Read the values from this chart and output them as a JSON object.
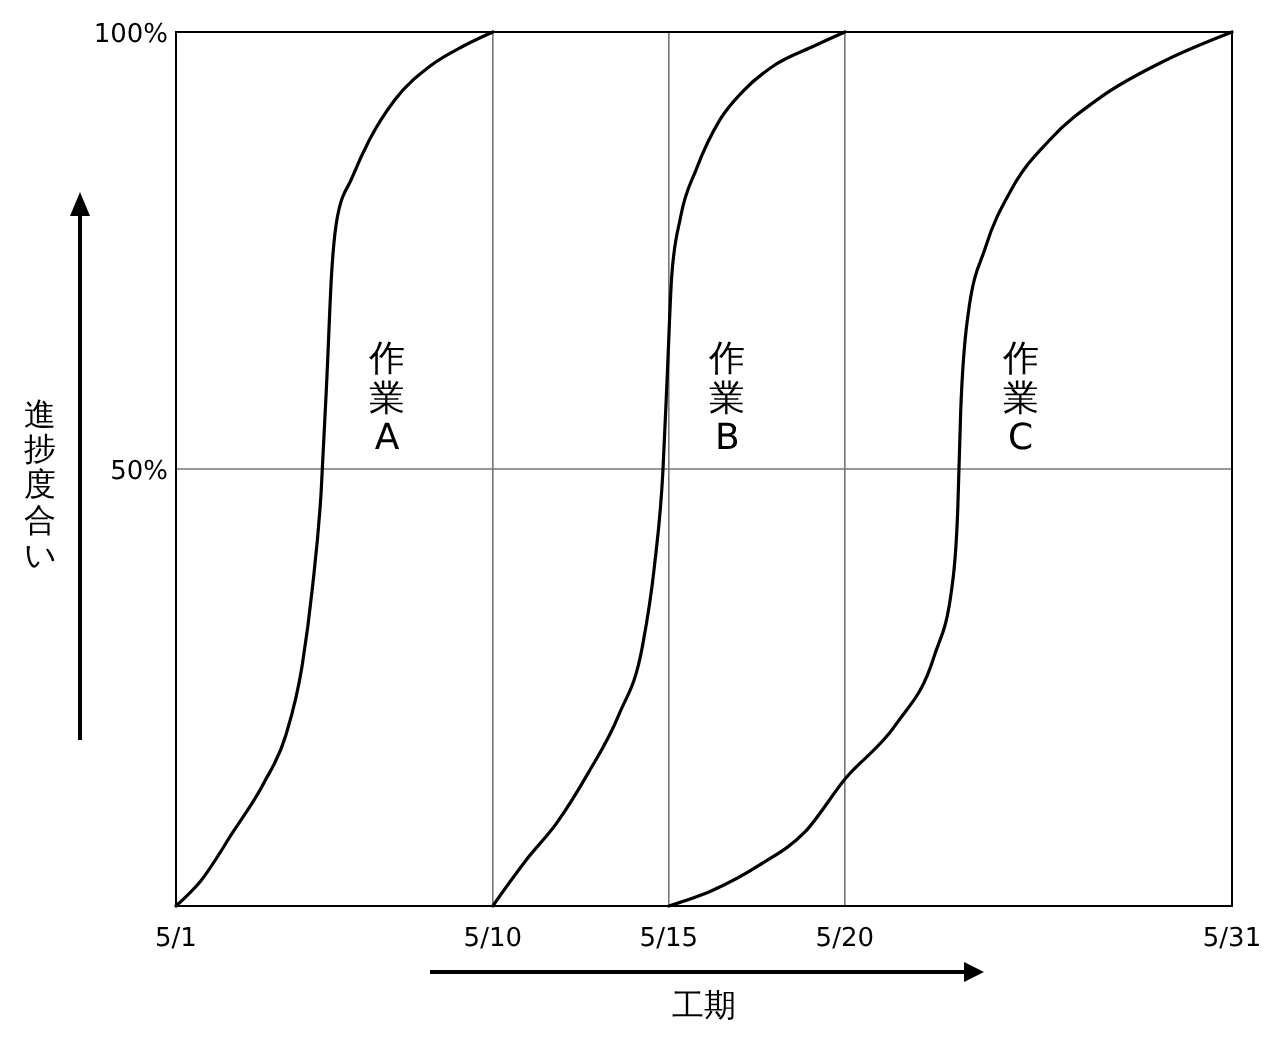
{
  "chart_data": {
    "type": "line",
    "xlabel": "工期",
    "ylabel": "進捗度合い",
    "xlim": [
      "--05-01",
      "--05-31"
    ],
    "xticks": [
      {
        "value": "--05-01",
        "label": "5/1"
      },
      {
        "value": "--05-10",
        "label": "5/10"
      },
      {
        "value": "--05-15",
        "label": "5/15"
      },
      {
        "value": "--05-20",
        "label": "5/20"
      },
      {
        "value": "--05-31",
        "label": "5/31"
      }
    ],
    "ylim": [
      0,
      100
    ],
    "yticks": [
      {
        "value": 0,
        "label": null
      },
      {
        "value": 50,
        "label": "50%"
      },
      {
        "value": 100,
        "label": "100%"
      }
    ],
    "grid": true,
    "line_style": "solid",
    "series": [
      {
        "name": "作業A",
        "color": "#000000",
        "x": [
          "--05-01T00:00",
          "--05-01T17:00",
          "--05-02T15:00",
          "--05-03T12:00",
          "--05-04T03:00",
          "--05-04T14:00",
          "--05-04T21:00",
          "--05-05T03:00",
          "--05-05T07:00",
          "--05-05T10:00",
          "--05-05T14:00",
          "--05-06T00:00",
          "--05-06T12:00",
          "--05-07T05:00",
          "--05-08T06:00",
          "--05-09T04:00",
          "--05-10T00:00"
        ],
        "values": [
          0,
          2.9,
          8.5,
          14.1,
          19.6,
          27.5,
          36.4,
          47.5,
          60.9,
          72.1,
          78.8,
          83.3,
          87.7,
          92.2,
          96.2,
          98.4,
          100
        ]
      },
      {
        "name": "作業B",
        "color": "#000000",
        "x": [
          "--05-10T00:00",
          "--05-10T22:00",
          "--05-11T20:00",
          "--05-12T17:00",
          "--05-13T14:00",
          "--05-14T06:00",
          "--05-14T14:00",
          "--05-14T20:00",
          "--05-14T23:00",
          "--05-15T02:00",
          "--05-15T08:00",
          "--05-15T19:00",
          "--05-16T11:00",
          "--05-17T03:00",
          "--05-18T00:00",
          "--05-19T03:00",
          "--05-20T00:00"
        ],
        "values": [
          0,
          5.1,
          9.6,
          15.2,
          21.9,
          29.7,
          38.6,
          49.8,
          60.9,
          72.1,
          78.8,
          84.4,
          90,
          93.3,
          96.2,
          98.4,
          100
        ]
      },
      {
        "name": "作業C",
        "color": "#000000",
        "x": [
          "--05-15T00:00",
          "--05-16T06:00",
          "--05-17T14:00",
          "--05-18T21:00",
          "--05-20T00:00",
          "--05-21T11:00",
          "--05-22T13:00",
          "--05-23T01:00",
          "--05-23T05:00",
          "--05-23T07:00",
          "--05-23T12:00",
          "--05-24T00:00",
          "--05-24T18:00",
          "--05-25T20:00",
          "--05-27T07:00",
          "--05-29T02:00",
          "--05-31T00:00"
        ],
        "values": [
          0,
          1.8,
          4.7,
          8.5,
          14.5,
          20.8,
          28.6,
          36.4,
          45.3,
          56.5,
          67.6,
          75.4,
          82.1,
          87.7,
          92.6,
          96.7,
          100
        ]
      }
    ]
  }
}
